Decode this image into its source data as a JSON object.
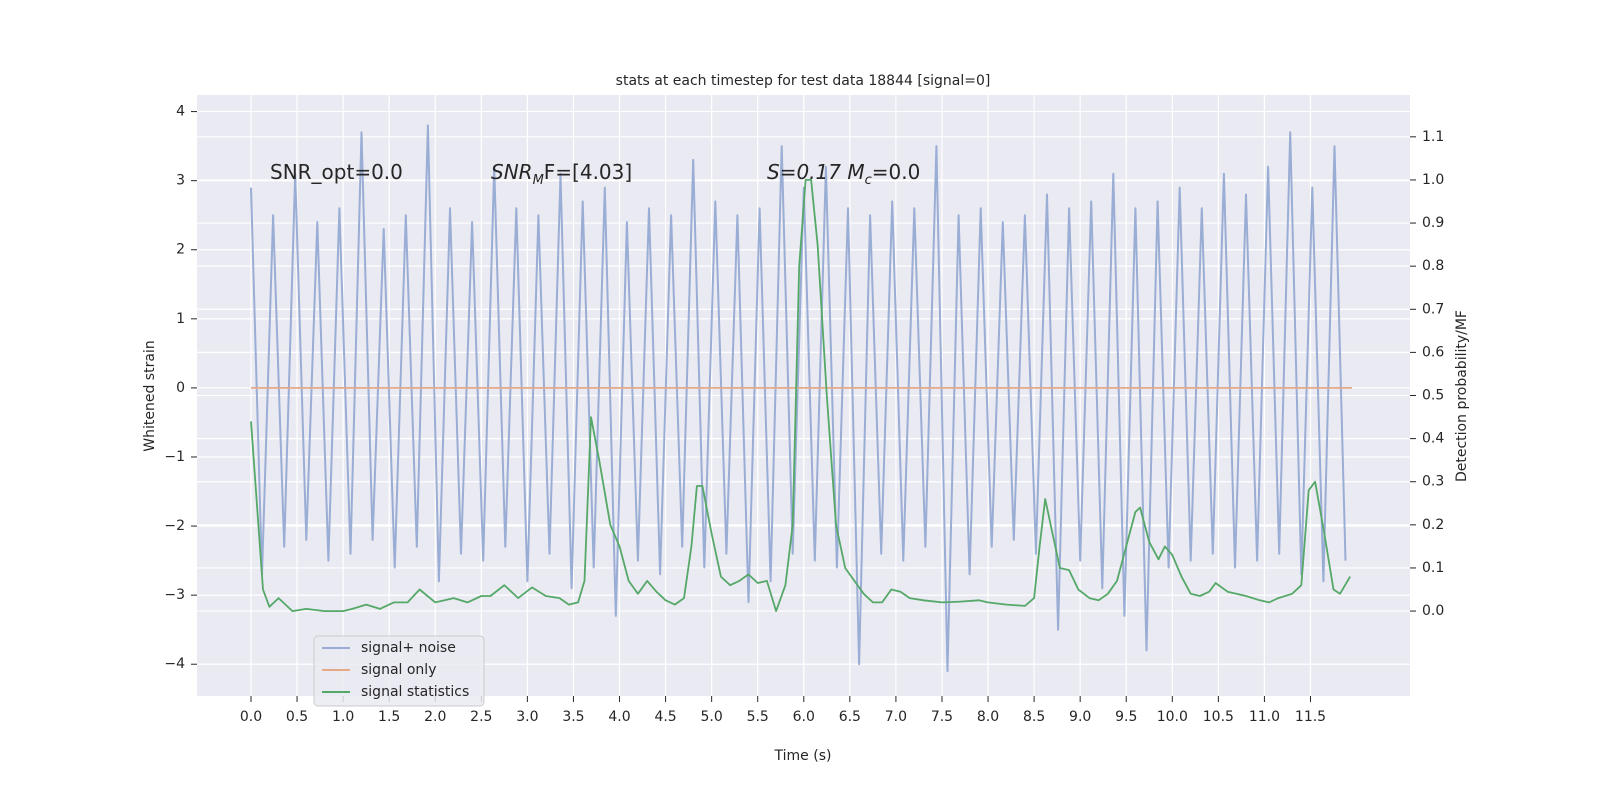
{
  "chart_data": {
    "type": "line",
    "title": "stats at each timestep for test data 18844 [signal=0]",
    "xlabel": "Time (s)",
    "ylabel": "Whitened strain",
    "y2label": "Detection probability/MF",
    "annotations": [
      [
        "SNR_opt=0.0"
      ],
      [
        "SNR",
        "M",
        "F=[4.03]"
      ],
      [
        "S=0.17   M",
        "c",
        "=0.0"
      ]
    ],
    "xlim": [
      -0.586,
      12.58
    ],
    "ylim": [
      -4.46,
      4.24
    ],
    "y2lim": [
      -0.197,
      1.197
    ],
    "xticks": [
      {
        "value": 0,
        "label": "0.0"
      },
      {
        "value": 0.5,
        "label": "0.5"
      },
      {
        "value": 1,
        "label": "1.0"
      },
      {
        "value": 1.5,
        "label": "1.5"
      },
      {
        "value": 2,
        "label": "2.0"
      },
      {
        "value": 2.5,
        "label": "2.5"
      },
      {
        "value": 3,
        "label": "3.0"
      },
      {
        "value": 3.5,
        "label": "3.5"
      },
      {
        "value": 4,
        "label": "4.0"
      },
      {
        "value": 4.5,
        "label": "4.5"
      },
      {
        "value": 5,
        "label": "5.0"
      },
      {
        "value": 5.5,
        "label": "5.5"
      },
      {
        "value": 6,
        "label": "6.0"
      },
      {
        "value": 6.5,
        "label": "6.5"
      },
      {
        "value": 7,
        "label": "7.0"
      },
      {
        "value": 7.5,
        "label": "7.5"
      },
      {
        "value": 8,
        "label": "8.0"
      },
      {
        "value": 8.5,
        "label": "8.5"
      },
      {
        "value": 9,
        "label": "9.0"
      },
      {
        "value": 9.5,
        "label": "9.5"
      },
      {
        "value": 10,
        "label": "10.0"
      },
      {
        "value": 10.5,
        "label": "10.5"
      },
      {
        "value": 11,
        "label": "11.0"
      },
      {
        "value": 11.5,
        "label": "11.5"
      }
    ],
    "yticks": [
      {
        "value": -4,
        "label": "−4"
      },
      {
        "value": -3,
        "label": "−3"
      },
      {
        "value": -2,
        "label": "−2"
      },
      {
        "value": -1,
        "label": "−1"
      },
      0,
      1,
      2,
      3,
      4
    ],
    "y2ticks": [
      {
        "value": 0,
        "label": "0.0"
      },
      {
        "value": 0.1,
        "label": "0.1"
      },
      {
        "value": 0.2,
        "label": "0.2"
      },
      {
        "value": 0.3,
        "label": "0.3"
      },
      {
        "value": 0.4,
        "label": "0.4"
      },
      {
        "value": 0.5,
        "label": "0.5"
      },
      {
        "value": 0.6,
        "label": "0.6"
      },
      {
        "value": 0.7,
        "label": "0.7"
      },
      {
        "value": 0.8,
        "label": "0.8"
      },
      {
        "value": 0.9,
        "label": "0.9"
      },
      {
        "value": 1,
        "label": "1.0"
      },
      {
        "value": 1.1,
        "label": "1.1"
      }
    ],
    "grid": true,
    "legend": "lower left",
    "series": [
      {
        "name": "signal+ noise",
        "color": "#9aadd4",
        "x": [
          0,
          0.12,
          0.24,
          0.36,
          0.48,
          0.6,
          0.72,
          0.84,
          0.96,
          1.08,
          1.2,
          1.32,
          1.44,
          1.56,
          1.68,
          1.8,
          1.92,
          2.04,
          2.16,
          2.28,
          2.4,
          2.52,
          2.64,
          2.76,
          2.88,
          3,
          3.12,
          3.24,
          3.36,
          3.48,
          3.6,
          3.72,
          3.84,
          3.96,
          4.08,
          4.2,
          4.32,
          4.44,
          4.56,
          4.68,
          4.8,
          4.92,
          5.04,
          5.16,
          5.28,
          5.4,
          5.52,
          5.64,
          5.76,
          5.88,
          6,
          6.12,
          6.24,
          6.36,
          6.48,
          6.6,
          6.72,
          6.84,
          6.96,
          7.08,
          7.2,
          7.32,
          7.44,
          7.56,
          7.68,
          7.8,
          7.92,
          8.04,
          8.16,
          8.28,
          8.4,
          8.52,
          8.64,
          8.76,
          8.88,
          9,
          9.12,
          9.24,
          9.36,
          9.48,
          9.6,
          9.72,
          9.84,
          9.96,
          10.08,
          10.2,
          10.32,
          10.44,
          10.56,
          10.68,
          10.8,
          10.92,
          11.04,
          11.16,
          11.28,
          11.4,
          11.52,
          11.64,
          11.76,
          11.88
        ],
        "values": [
          2.9,
          -2.7,
          2.5,
          -2.3,
          3.1,
          -2.2,
          2.4,
          -2.5,
          2.6,
          -2.4,
          3.7,
          -2.2,
          2.3,
          -2.6,
          2.5,
          -2.3,
          3.8,
          -2.8,
          2.6,
          -2.4,
          2.4,
          -2.5,
          3.2,
          -2.3,
          2.6,
          -2.8,
          2.5,
          -2.4,
          3.1,
          -2.9,
          2.7,
          -2.6,
          2.9,
          -3.3,
          2.4,
          -2.5,
          2.6,
          -2.7,
          2.5,
          -2.3,
          3.3,
          -2.6,
          2.7,
          -2.4,
          2.5,
          -3.1,
          2.6,
          -2.8,
          3.5,
          -2.4,
          2.9,
          -2.5,
          3.2,
          -2.6,
          2.6,
          -4.0,
          2.5,
          -2.4,
          2.7,
          -2.5,
          2.6,
          -2.3,
          3.5,
          -4.1,
          2.5,
          -2.7,
          2.6,
          -2.3,
          2.4,
          -2.2,
          2.5,
          -2.4,
          2.8,
          -3.5,
          2.6,
          -2.5,
          2.7,
          -2.9,
          3.1,
          -3.3,
          2.6,
          -3.8,
          2.7,
          -2.6,
          2.9,
          -2.5,
          2.6,
          -2.4,
          3.1,
          -2.6,
          2.8,
          -2.5,
          3.2,
          -2.4,
          3.7,
          -2.7,
          2.9,
          -2.8,
          3.5,
          -2.5
        ]
      },
      {
        "name": "signal only",
        "color": "#e6a988",
        "x": [
          0,
          11.95
        ],
        "values": [
          0,
          0
        ]
      },
      {
        "name": "signal statistics",
        "color": "#55a868",
        "axis": "y2",
        "x": [
          0,
          0.13,
          0.2,
          0.3,
          0.45,
          0.6,
          0.8,
          1.0,
          1.1,
          1.25,
          1.4,
          1.55,
          1.7,
          1.83,
          2.0,
          2.2,
          2.35,
          2.5,
          2.6,
          2.75,
          2.9,
          3.05,
          3.2,
          3.35,
          3.45,
          3.55,
          3.62,
          3.69,
          3.78,
          3.9,
          4.0,
          4.1,
          4.2,
          4.3,
          4.4,
          4.5,
          4.6,
          4.7,
          4.78,
          4.84,
          4.9,
          5.0,
          5.1,
          5.2,
          5.3,
          5.4,
          5.5,
          5.6,
          5.7,
          5.8,
          5.88,
          5.95,
          6.02,
          6.08,
          6.15,
          6.25,
          6.35,
          6.45,
          6.55,
          6.65,
          6.75,
          6.85,
          6.95,
          7.05,
          7.15,
          7.3,
          7.5,
          7.7,
          7.9,
          8.0,
          8.2,
          8.4,
          8.5,
          8.56,
          8.62,
          8.7,
          8.78,
          8.88,
          8.98,
          9.1,
          9.2,
          9.3,
          9.4,
          9.5,
          9.6,
          9.65,
          9.75,
          9.85,
          9.92,
          10.0,
          10.1,
          10.2,
          10.3,
          10.4,
          10.47,
          10.6,
          10.8,
          10.95,
          11.05,
          11.15,
          11.3,
          11.4,
          11.48,
          11.55,
          11.65,
          11.75,
          11.82,
          11.93
        ],
        "values": [
          0.44,
          0.05,
          0.01,
          0.03,
          0.0,
          0.005,
          0.0,
          0.0,
          0.005,
          0.015,
          0.005,
          0.02,
          0.02,
          0.05,
          0.02,
          0.03,
          0.02,
          0.035,
          0.035,
          0.06,
          0.03,
          0.055,
          0.035,
          0.03,
          0.015,
          0.02,
          0.07,
          0.45,
          0.35,
          0.2,
          0.15,
          0.07,
          0.04,
          0.07,
          0.045,
          0.025,
          0.015,
          0.03,
          0.15,
          0.29,
          0.29,
          0.18,
          0.08,
          0.06,
          0.07,
          0.085,
          0.065,
          0.07,
          0.0,
          0.06,
          0.2,
          0.8,
          1.0,
          1.0,
          0.85,
          0.5,
          0.2,
          0.1,
          0.07,
          0.04,
          0.02,
          0.02,
          0.05,
          0.045,
          0.03,
          0.025,
          0.02,
          0.022,
          0.025,
          0.02,
          0.015,
          0.012,
          0.03,
          0.15,
          0.26,
          0.18,
          0.1,
          0.095,
          0.05,
          0.03,
          0.025,
          0.04,
          0.07,
          0.15,
          0.23,
          0.24,
          0.16,
          0.12,
          0.15,
          0.13,
          0.08,
          0.04,
          0.035,
          0.045,
          0.065,
          0.045,
          0.035,
          0.025,
          0.02,
          0.03,
          0.04,
          0.06,
          0.28,
          0.3,
          0.18,
          0.05,
          0.04,
          0.08
        ]
      }
    ]
  }
}
